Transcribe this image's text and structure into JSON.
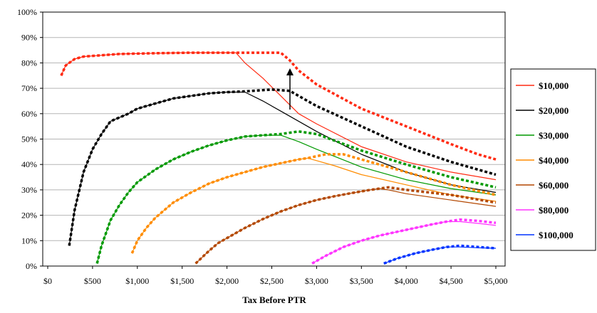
{
  "chart_data": {
    "type": "line",
    "xlabel": "Tax Before PTR",
    "ylabel": "",
    "xlim": [
      0,
      5000
    ],
    "ylim": [
      0,
      100
    ],
    "x_ticks": [
      0,
      500,
      1000,
      1500,
      2000,
      2500,
      3000,
      3500,
      4000,
      4500,
      5000
    ],
    "x_tick_labels": [
      "$0",
      "$500",
      "$1,000",
      "$1,500",
      "$2,000",
      "$2,500",
      "$3,000",
      "$3,500",
      "$4,000",
      "$4,500",
      "$5,000"
    ],
    "y_ticks": [
      0,
      10,
      20,
      30,
      40,
      50,
      60,
      70,
      80,
      90,
      100
    ],
    "y_tick_labels": [
      "0%",
      "10%",
      "20%",
      "30%",
      "40%",
      "50%",
      "60%",
      "70%",
      "80%",
      "90%",
      "100%"
    ],
    "grid": "horizontal",
    "legend_position": "right",
    "annotation": "arrow from $10,000 solid to dashed curve at x≈2700",
    "series": [
      {
        "name": "$10,000",
        "color": "#ff2a12",
        "solid": [
          [
            150,
            75
          ],
          [
            200,
            79
          ],
          [
            300,
            81.5
          ],
          [
            400,
            82.5
          ],
          [
            600,
            83
          ],
          [
            800,
            83.5
          ],
          [
            1200,
            83.8
          ],
          [
            1600,
            84
          ],
          [
            2000,
            84
          ],
          [
            2100,
            84
          ],
          [
            2200,
            80
          ],
          [
            2400,
            74
          ],
          [
            2600,
            67
          ],
          [
            2800,
            60
          ],
          [
            3000,
            56
          ],
          [
            3500,
            47
          ],
          [
            4000,
            41
          ],
          [
            4500,
            37
          ],
          [
            5000,
            34
          ]
        ],
        "dashed": [
          [
            150,
            75
          ],
          [
            200,
            79
          ],
          [
            300,
            81.5
          ],
          [
            400,
            82.5
          ],
          [
            600,
            83
          ],
          [
            800,
            83.5
          ],
          [
            1200,
            83.8
          ],
          [
            1600,
            84
          ],
          [
            2000,
            84
          ],
          [
            2600,
            84
          ],
          [
            2700,
            81
          ],
          [
            2800,
            77
          ],
          [
            3000,
            71.5
          ],
          [
            3500,
            62
          ],
          [
            4000,
            55
          ],
          [
            4500,
            48
          ],
          [
            4800,
            44
          ],
          [
            5000,
            42
          ]
        ]
      },
      {
        "name": "$20,000",
        "color": "#000000",
        "solid": [
          [
            240,
            8
          ],
          [
            300,
            22
          ],
          [
            400,
            37
          ],
          [
            500,
            46
          ],
          [
            600,
            52
          ],
          [
            700,
            57
          ],
          [
            900,
            60
          ],
          [
            1000,
            62
          ],
          [
            1200,
            64
          ],
          [
            1400,
            66
          ],
          [
            1600,
            67
          ],
          [
            1800,
            68
          ],
          [
            2000,
            68.5
          ],
          [
            2200,
            68.5
          ],
          [
            2400,
            65
          ],
          [
            2600,
            61
          ],
          [
            3000,
            53
          ],
          [
            3500,
            44
          ],
          [
            4000,
            37
          ],
          [
            4500,
            32
          ],
          [
            5000,
            29
          ]
        ],
        "dashed": [
          [
            240,
            8
          ],
          [
            300,
            22
          ],
          [
            400,
            37
          ],
          [
            500,
            46
          ],
          [
            600,
            52
          ],
          [
            700,
            57
          ],
          [
            900,
            60
          ],
          [
            1000,
            62
          ],
          [
            1200,
            64
          ],
          [
            1400,
            66
          ],
          [
            1600,
            67
          ],
          [
            1800,
            68
          ],
          [
            2000,
            68.5
          ],
          [
            2200,
            68.8
          ],
          [
            2500,
            69.5
          ],
          [
            2700,
            69
          ],
          [
            3000,
            63
          ],
          [
            3500,
            55
          ],
          [
            4000,
            47
          ],
          [
            4500,
            41
          ],
          [
            5000,
            36
          ]
        ]
      },
      {
        "name": "$30,000",
        "color": "#009900",
        "solid": [
          [
            550,
            1
          ],
          [
            600,
            8
          ],
          [
            700,
            18
          ],
          [
            800,
            24
          ],
          [
            900,
            29
          ],
          [
            1000,
            33
          ],
          [
            1200,
            38
          ],
          [
            1400,
            42
          ],
          [
            1600,
            45
          ],
          [
            1800,
            47.5
          ],
          [
            2000,
            49.5
          ],
          [
            2200,
            51
          ],
          [
            2400,
            51.5
          ],
          [
            2600,
            51.5
          ],
          [
            2800,
            49
          ],
          [
            3000,
            46
          ],
          [
            3500,
            39
          ],
          [
            4000,
            34
          ],
          [
            4500,
            30.5
          ],
          [
            5000,
            28
          ]
        ],
        "dashed": [
          [
            550,
            1
          ],
          [
            600,
            8
          ],
          [
            700,
            18
          ],
          [
            800,
            24
          ],
          [
            900,
            29
          ],
          [
            1000,
            33
          ],
          [
            1200,
            38
          ],
          [
            1400,
            42
          ],
          [
            1600,
            45
          ],
          [
            1800,
            47.5
          ],
          [
            2000,
            49.5
          ],
          [
            2200,
            51
          ],
          [
            2400,
            51.5
          ],
          [
            2600,
            52
          ],
          [
            2800,
            53
          ],
          [
            3000,
            52
          ],
          [
            3500,
            45.5
          ],
          [
            4000,
            40
          ],
          [
            4500,
            35
          ],
          [
            5000,
            31
          ]
        ]
      },
      {
        "name": "$40,000",
        "color": "#ff8c00",
        "solid": [
          [
            940,
            5
          ],
          [
            1000,
            10
          ],
          [
            1100,
            15
          ],
          [
            1200,
            19
          ],
          [
            1400,
            25
          ],
          [
            1600,
            29
          ],
          [
            1800,
            32.5
          ],
          [
            2000,
            35
          ],
          [
            2200,
            37
          ],
          [
            2400,
            39
          ],
          [
            2600,
            40.5
          ],
          [
            2800,
            42
          ],
          [
            2900,
            42.5
          ],
          [
            3000,
            41.5
          ],
          [
            3200,
            39.5
          ],
          [
            3500,
            36
          ],
          [
            4000,
            32
          ],
          [
            4500,
            28
          ],
          [
            5000,
            25.5
          ]
        ],
        "dashed": [
          [
            940,
            5
          ],
          [
            1000,
            10
          ],
          [
            1100,
            15
          ],
          [
            1200,
            19
          ],
          [
            1400,
            25
          ],
          [
            1600,
            29
          ],
          [
            1800,
            32.5
          ],
          [
            2000,
            35
          ],
          [
            2200,
            37
          ],
          [
            2400,
            39
          ],
          [
            2600,
            40.5
          ],
          [
            2800,
            42
          ],
          [
            2900,
            42.5
          ],
          [
            3100,
            44
          ],
          [
            3300,
            44
          ],
          [
            3500,
            42
          ],
          [
            4000,
            37
          ],
          [
            4500,
            32
          ],
          [
            5000,
            28
          ]
        ]
      },
      {
        "name": "$60,000",
        "color": "#b34700",
        "solid": [
          [
            1650,
            1
          ],
          [
            1800,
            6
          ],
          [
            1900,
            9
          ],
          [
            2000,
            11
          ],
          [
            2200,
            15
          ],
          [
            2400,
            18.5
          ],
          [
            2600,
            21.5
          ],
          [
            2800,
            24
          ],
          [
            3000,
            26
          ],
          [
            3200,
            27.5
          ],
          [
            3400,
            28.8
          ],
          [
            3600,
            30
          ],
          [
            3700,
            30.5
          ],
          [
            3800,
            30
          ],
          [
            4000,
            28.5
          ],
          [
            4500,
            26
          ],
          [
            5000,
            23.5
          ]
        ],
        "dashed": [
          [
            1650,
            1
          ],
          [
            1800,
            6
          ],
          [
            1900,
            9
          ],
          [
            2000,
            11
          ],
          [
            2200,
            15
          ],
          [
            2400,
            18.5
          ],
          [
            2600,
            21.5
          ],
          [
            2800,
            24
          ],
          [
            3000,
            26
          ],
          [
            3200,
            27.5
          ],
          [
            3400,
            28.8
          ],
          [
            3600,
            30
          ],
          [
            3800,
            31
          ],
          [
            4000,
            30
          ],
          [
            4500,
            28
          ],
          [
            5000,
            25
          ]
        ]
      },
      {
        "name": "$80,000",
        "color": "#ff33ff",
        "solid": [
          [
            2950,
            1
          ],
          [
            3100,
            4
          ],
          [
            3300,
            7.5
          ],
          [
            3500,
            10
          ],
          [
            3700,
            12
          ],
          [
            3900,
            13.5
          ],
          [
            4100,
            15
          ],
          [
            4300,
            16.5
          ],
          [
            4450,
            17.5
          ],
          [
            4600,
            17.5
          ],
          [
            4800,
            16.8
          ],
          [
            5000,
            16
          ]
        ],
        "dashed": [
          [
            2950,
            1
          ],
          [
            3100,
            4
          ],
          [
            3300,
            7.5
          ],
          [
            3500,
            10
          ],
          [
            3700,
            12
          ],
          [
            3900,
            13.5
          ],
          [
            4100,
            15
          ],
          [
            4300,
            16.5
          ],
          [
            4450,
            17.5
          ],
          [
            4600,
            18.3
          ],
          [
            4800,
            17.8
          ],
          [
            5000,
            17
          ]
        ]
      },
      {
        "name": "$100,000",
        "color": "#0033ff",
        "solid": [
          [
            3750,
            1
          ],
          [
            3900,
            3
          ],
          [
            4100,
            5
          ],
          [
            4300,
            6.5
          ],
          [
            4450,
            7.5
          ],
          [
            4600,
            7.5
          ],
          [
            4800,
            7.2
          ],
          [
            5000,
            7
          ]
        ],
        "dashed": [
          [
            3750,
            1
          ],
          [
            3900,
            3
          ],
          [
            4100,
            5
          ],
          [
            4300,
            6.5
          ],
          [
            4450,
            7.5
          ],
          [
            4600,
            8
          ],
          [
            4800,
            7.5
          ],
          [
            5000,
            7
          ]
        ]
      }
    ]
  }
}
